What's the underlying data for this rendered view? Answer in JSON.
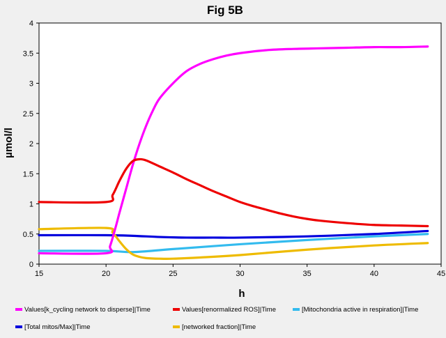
{
  "chart_data": {
    "type": "line",
    "title": "Fig 5B",
    "xlabel": "h",
    "ylabel": "µmol/l",
    "xlim": [
      15,
      45
    ],
    "ylim": [
      0,
      4
    ],
    "xticks": [
      15,
      20,
      25,
      30,
      35,
      40,
      45
    ],
    "yticks": [
      0,
      0.5,
      1,
      1.5,
      2,
      2.5,
      3,
      3.5,
      4
    ],
    "xtick_labels": [
      "15",
      "20",
      "25",
      "30",
      "35",
      "40",
      "45"
    ],
    "ytick_labels": [
      "0",
      "0.5",
      "1",
      "1.5",
      "2",
      "2.5",
      "3",
      "3.5",
      "4"
    ],
    "grid": false,
    "legend_position": "bottom",
    "series": [
      {
        "name": "Values[k_cycling network to disperse]|Time",
        "color": "#ff00ff",
        "x": [
          15,
          20,
          20.3,
          20.7,
          21,
          21.5,
          22,
          22.5,
          23,
          23.5,
          24,
          25,
          26,
          27,
          28,
          29,
          30,
          32,
          34,
          36,
          38,
          40,
          42,
          44
        ],
        "y": [
          0.18,
          0.18,
          0.3,
          0.6,
          0.85,
          1.25,
          1.65,
          2.0,
          2.3,
          2.55,
          2.75,
          3.0,
          3.2,
          3.32,
          3.4,
          3.46,
          3.5,
          3.55,
          3.57,
          3.58,
          3.59,
          3.6,
          3.6,
          3.61
        ]
      },
      {
        "name": "Values[renormalized ROS]|Time",
        "color": "#ee0000",
        "x": [
          15,
          20,
          20.5,
          21,
          21.5,
          22,
          22.5,
          23,
          24,
          25,
          26,
          27,
          28,
          29,
          30,
          31,
          32,
          33,
          34,
          35,
          36,
          38,
          40,
          42,
          44
        ],
        "y": [
          1.03,
          1.03,
          1.15,
          1.38,
          1.58,
          1.71,
          1.74,
          1.72,
          1.62,
          1.52,
          1.41,
          1.31,
          1.21,
          1.12,
          1.03,
          0.96,
          0.9,
          0.84,
          0.79,
          0.75,
          0.72,
          0.68,
          0.65,
          0.64,
          0.63
        ]
      },
      {
        "name": "[Mitochondria active in respiration]|Time",
        "color": "#33bbee",
        "x": [
          15,
          20,
          22,
          25,
          30,
          35,
          40,
          44
        ],
        "y": [
          0.22,
          0.22,
          0.2,
          0.25,
          0.33,
          0.4,
          0.46,
          0.5
        ]
      },
      {
        "name": "[Total mitos/Max]|Time",
        "color": "#0000dd",
        "x": [
          15,
          20,
          22,
          24,
          26,
          28,
          30,
          35,
          40,
          44
        ],
        "y": [
          0.48,
          0.48,
          0.47,
          0.45,
          0.44,
          0.44,
          0.44,
          0.46,
          0.5,
          0.55
        ]
      },
      {
        "name": "[networked fraction]|Time",
        "color": "#eebb00",
        "x": [
          15,
          20,
          20.5,
          21,
          21.5,
          22,
          22.5,
          23,
          24,
          25,
          27,
          30,
          35,
          40,
          44
        ],
        "y": [
          0.58,
          0.6,
          0.52,
          0.38,
          0.25,
          0.16,
          0.12,
          0.1,
          0.09,
          0.09,
          0.11,
          0.15,
          0.24,
          0.31,
          0.35
        ]
      }
    ]
  }
}
